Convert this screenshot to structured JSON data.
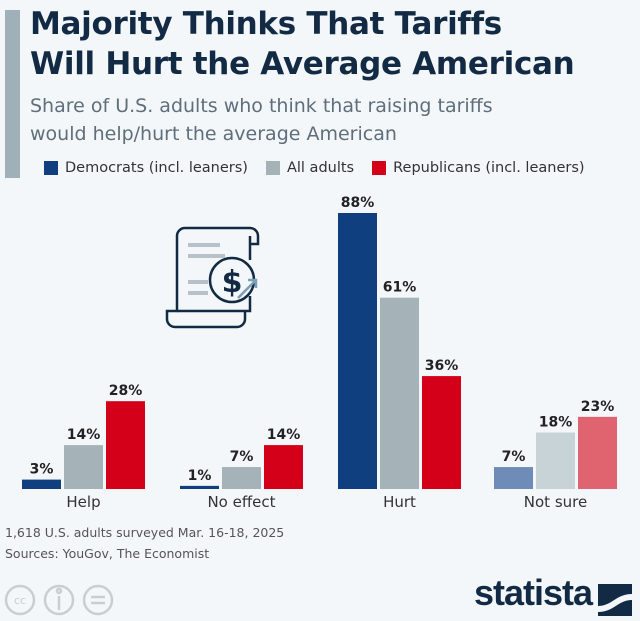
{
  "header": {
    "title_line1": "Majority Thinks That Tariffs",
    "title_line2": "Will Hurt the Average American",
    "subtitle_line1": "Share of U.S. adults who think that raising tariffs",
    "subtitle_line2": "would help/hurt the average American"
  },
  "chart_data": {
    "type": "bar",
    "title": "Majority Thinks That Tariffs Will Hurt the Average American",
    "categories": [
      "Help",
      "No effect",
      "Hurt",
      "Not sure"
    ],
    "series": [
      {
        "name": "Democrats (incl. leaners)",
        "color": "#0f3f7f",
        "values": [
          3,
          1,
          88,
          7
        ]
      },
      {
        "name": "All adults",
        "color": "#a5b3b8",
        "values": [
          14,
          7,
          61,
          18
        ]
      },
      {
        "name": "Republicans (incl. leaners)",
        "color": "#d4001a",
        "values": [
          28,
          14,
          36,
          23
        ]
      }
    ],
    "not_sure_colors": [
      "#6f8cb8",
      "#c8d3d8",
      "#e0646f"
    ],
    "value_suffix": "%",
    "ylim": [
      0,
      100
    ],
    "grid": false,
    "legend": "top"
  },
  "footer": {
    "note": "1,618 U.S. adults surveyed Mar. 16-18, 2025",
    "sources": "Sources: YouGov, The Economist",
    "brand": "statista",
    "license_icons": [
      "cc-icon",
      "attribution-icon",
      "no-derivatives-icon"
    ]
  },
  "icon": "tariff-document-dollar-icon"
}
